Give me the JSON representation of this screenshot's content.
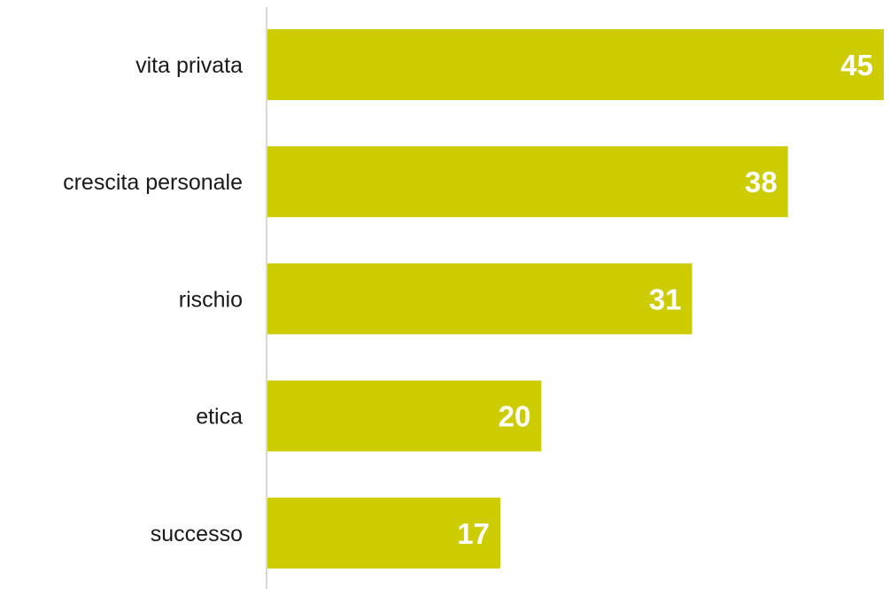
{
  "chart_data": {
    "type": "bar",
    "orientation": "horizontal",
    "categories": [
      "vita privata",
      "crescita personale",
      "rischio",
      "etica",
      "successo"
    ],
    "values": [
      45,
      38,
      31,
      20,
      17
    ],
    "value_labels": [
      "45",
      "38",
      "31",
      "20",
      "17"
    ],
    "xlim": [
      0,
      45
    ],
    "grid": false,
    "legend": "none",
    "bar_color": "#cccc00",
    "axis_color": "#d9d9d9",
    "label_color": "#1a1a1a",
    "value_label_color": "#ffffff"
  }
}
